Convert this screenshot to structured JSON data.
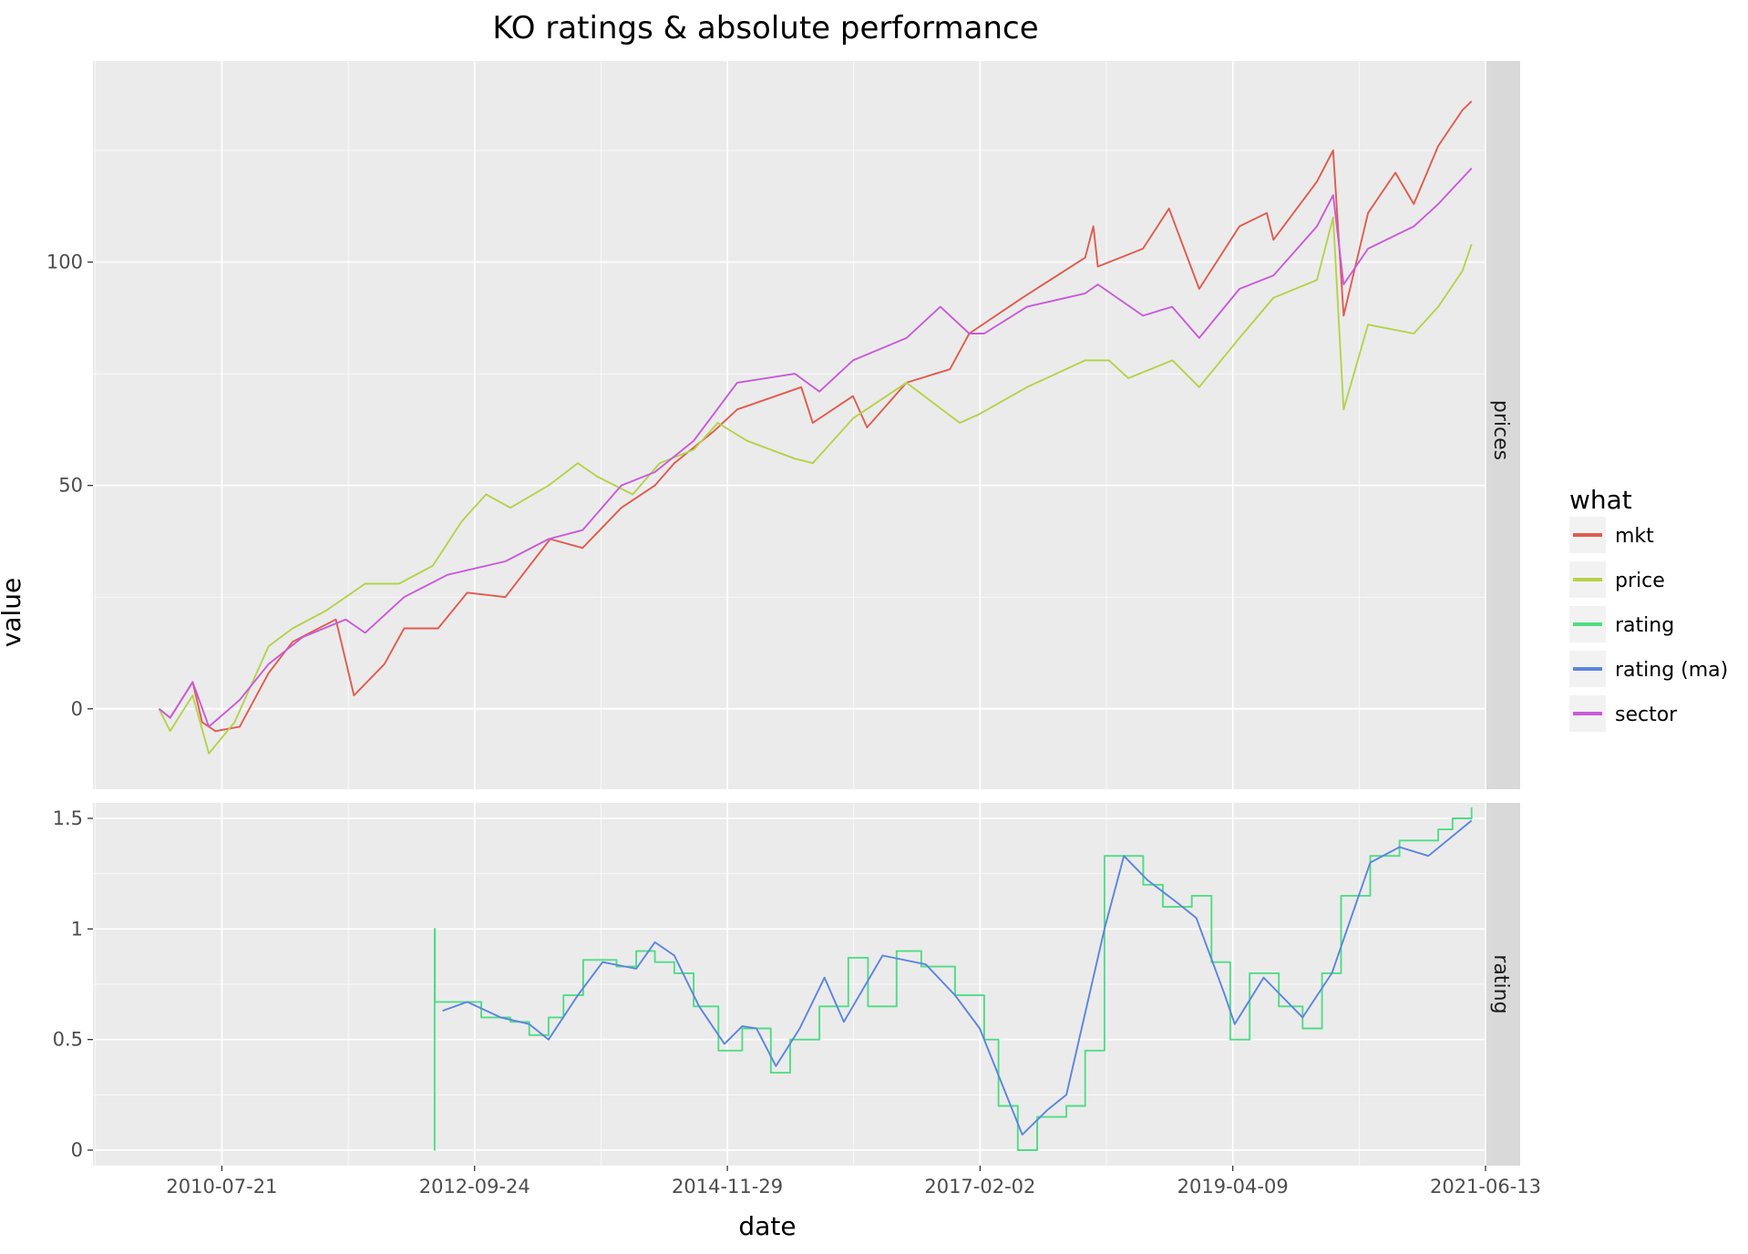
{
  "chart_data": {
    "type": "line",
    "title": "KO ratings & absolute performance",
    "xlabel": "date",
    "ylabel": "value",
    "x_type": "date",
    "x_ticks": [
      "2010-07-21",
      "2012-09-24",
      "2014-11-29",
      "2017-02-02",
      "2019-04-09",
      "2021-06-13"
    ],
    "xlim": [
      "2009-06-10",
      "2021-06-13"
    ],
    "grid": true,
    "legend": {
      "title": "what",
      "placement": "right",
      "entries": [
        "mkt",
        "price",
        "rating",
        "rating (ma)",
        "sector"
      ]
    },
    "colors": {
      "mkt": "#e15b4f",
      "price": "#b5d24b",
      "rating": "#4fdd85",
      "rating (ma)": "#5b84e0",
      "sector": "#c85bd9"
    },
    "facets": [
      {
        "label": "prices",
        "ylim": [
          -18,
          145
        ],
        "y_ticks": [
          "0",
          "50",
          "100"
        ],
        "series": [
          {
            "name": "mkt",
            "points": [
              [
                "2010-01-04",
                0
              ],
              [
                "2010-02-08",
                -2
              ],
              [
                "2010-04-20",
                6
              ],
              [
                "2010-05-20",
                -3
              ],
              [
                "2010-07-01",
                -5
              ],
              [
                "2010-09-15",
                -4
              ],
              [
                "2010-12-15",
                8
              ],
              [
                "2011-03-01",
                15
              ],
              [
                "2011-07-15",
                20
              ],
              [
                "2011-09-10",
                3
              ],
              [
                "2011-12-15",
                10
              ],
              [
                "2012-02-15",
                18
              ],
              [
                "2012-06-01",
                18
              ],
              [
                "2012-09-01",
                26
              ],
              [
                "2012-12-30",
                25
              ],
              [
                "2013-05-20",
                38
              ],
              [
                "2013-08-30",
                36
              ],
              [
                "2013-12-30",
                45
              ],
              [
                "2014-04-15",
                50
              ],
              [
                "2014-06-15",
                55
              ],
              [
                "2014-10-15",
                62
              ],
              [
                "2014-12-30",
                67
              ],
              [
                "2015-07-20",
                72
              ],
              [
                "2015-08-25",
                64
              ],
              [
                "2015-12-30",
                70
              ],
              [
                "2016-02-12",
                63
              ],
              [
                "2016-06-15",
                73
              ],
              [
                "2016-10-30",
                76
              ],
              [
                "2016-12-30",
                84
              ],
              [
                "2017-06-15",
                92
              ],
              [
                "2017-12-30",
                101
              ],
              [
                "2018-01-25",
                108
              ],
              [
                "2018-02-08",
                99
              ],
              [
                "2018-06-30",
                103
              ],
              [
                "2018-09-20",
                112
              ],
              [
                "2018-12-24",
                94
              ],
              [
                "2019-04-30",
                108
              ],
              [
                "2019-07-25",
                111
              ],
              [
                "2019-08-15",
                105
              ],
              [
                "2019-12-30",
                118
              ],
              [
                "2020-02-19",
                125
              ],
              [
                "2020-03-23",
                88
              ],
              [
                "2020-06-08",
                111
              ],
              [
                "2020-09-02",
                120
              ],
              [
                "2020-10-30",
                113
              ],
              [
                "2021-01-15",
                126
              ],
              [
                "2021-04-01",
                134
              ],
              [
                "2021-04-30",
                136
              ]
            ]
          },
          {
            "name": "price",
            "points": [
              [
                "2010-01-04",
                0
              ],
              [
                "2010-02-08",
                -5
              ],
              [
                "2010-04-20",
                3
              ],
              [
                "2010-06-10",
                -10
              ],
              [
                "2010-08-30",
                -3
              ],
              [
                "2010-12-15",
                14
              ],
              [
                "2011-03-01",
                18
              ],
              [
                "2011-06-15",
                22
              ],
              [
                "2011-10-15",
                28
              ],
              [
                "2012-01-30",
                28
              ],
              [
                "2012-05-15",
                32
              ],
              [
                "2012-08-15",
                42
              ],
              [
                "2012-10-30",
                48
              ],
              [
                "2013-01-15",
                45
              ],
              [
                "2013-05-15",
                50
              ],
              [
                "2013-08-15",
                55
              ],
              [
                "2013-10-15",
                52
              ],
              [
                "2014-02-04",
                48
              ],
              [
                "2014-04-30",
                55
              ],
              [
                "2014-08-15",
                58
              ],
              [
                "2014-10-30",
                64
              ],
              [
                "2015-01-30",
                60
              ],
              [
                "2015-06-30",
                56
              ],
              [
                "2015-08-25",
                55
              ],
              [
                "2015-12-30",
                65
              ],
              [
                "2016-06-15",
                73
              ],
              [
                "2016-11-30",
                64
              ],
              [
                "2017-02-01",
                66
              ],
              [
                "2017-06-30",
                72
              ],
              [
                "2017-12-30",
                78
              ],
              [
                "2018-03-15",
                78
              ],
              [
                "2018-05-15",
                74
              ],
              [
                "2018-10-01",
                78
              ],
              [
                "2018-12-24",
                72
              ],
              [
                "2019-04-30",
                83
              ],
              [
                "2019-08-15",
                92
              ],
              [
                "2019-12-30",
                96
              ],
              [
                "2020-02-19",
                110
              ],
              [
                "2020-03-23",
                67
              ],
              [
                "2020-06-08",
                86
              ],
              [
                "2020-10-30",
                84
              ],
              [
                "2021-01-15",
                90
              ],
              [
                "2021-04-01",
                98
              ],
              [
                "2021-04-30",
                104
              ]
            ]
          },
          {
            "name": "sector",
            "points": [
              [
                "2010-01-04",
                0
              ],
              [
                "2010-02-08",
                -2
              ],
              [
                "2010-04-20",
                6
              ],
              [
                "2010-06-10",
                -4
              ],
              [
                "2010-09-15",
                2
              ],
              [
                "2010-12-15",
                10
              ],
              [
                "2011-04-01",
                16
              ],
              [
                "2011-08-15",
                20
              ],
              [
                "2011-10-15",
                17
              ],
              [
                "2012-02-15",
                25
              ],
              [
                "2012-07-01",
                30
              ],
              [
                "2012-12-30",
                33
              ],
              [
                "2013-05-15",
                38
              ],
              [
                "2013-08-30",
                40
              ],
              [
                "2013-12-30",
                50
              ],
              [
                "2014-04-15",
                53
              ],
              [
                "2014-08-15",
                60
              ],
              [
                "2014-12-30",
                73
              ],
              [
                "2015-06-30",
                75
              ],
              [
                "2015-09-15",
                71
              ],
              [
                "2015-12-30",
                78
              ],
              [
                "2016-06-15",
                83
              ],
              [
                "2016-09-30",
                90
              ],
              [
                "2016-12-30",
                84
              ],
              [
                "2017-02-15",
                84
              ],
              [
                "2017-06-30",
                90
              ],
              [
                "2017-12-30",
                93
              ],
              [
                "2018-02-08",
                95
              ],
              [
                "2018-06-30",
                88
              ],
              [
                "2018-09-30",
                90
              ],
              [
                "2018-12-24",
                83
              ],
              [
                "2019-04-30",
                94
              ],
              [
                "2019-08-15",
                97
              ],
              [
                "2019-12-30",
                108
              ],
              [
                "2020-02-19",
                115
              ],
              [
                "2020-03-23",
                95
              ],
              [
                "2020-06-08",
                103
              ],
              [
                "2020-10-30",
                108
              ],
              [
                "2021-01-15",
                113
              ],
              [
                "2021-04-30",
                121
              ]
            ]
          }
        ]
      },
      {
        "label": "rating",
        "ylim": [
          -0.07,
          1.57
        ],
        "y_ticks": [
          "0",
          "0.5",
          "1",
          "1.5"
        ],
        "series": [
          {
            "name": "rating",
            "step": true,
            "points": [
              [
                "2012-05-20",
                0
              ],
              [
                "2012-05-21",
                1
              ],
              [
                "2012-05-22",
                0.67
              ],
              [
                "2012-09-20",
                0.67
              ],
              [
                "2012-10-15",
                0.6
              ],
              [
                "2013-01-15",
                0.58
              ],
              [
                "2013-03-15",
                0.52
              ],
              [
                "2013-05-15",
                0.6
              ],
              [
                "2013-07-01",
                0.7
              ],
              [
                "2013-09-01",
                0.86
              ],
              [
                "2013-12-15",
                0.83
              ],
              [
                "2014-02-15",
                0.9
              ],
              [
                "2014-04-15",
                0.85
              ],
              [
                "2014-06-15",
                0.8
              ],
              [
                "2014-08-15",
                0.65
              ],
              [
                "2014-11-01",
                0.45
              ],
              [
                "2015-01-15",
                0.55
              ],
              [
                "2015-04-15",
                0.35
              ],
              [
                "2015-06-15",
                0.5
              ],
              [
                "2015-09-15",
                0.65
              ],
              [
                "2015-12-15",
                0.87
              ],
              [
                "2016-02-15",
                0.65
              ],
              [
                "2016-05-15",
                0.9
              ],
              [
                "2016-08-01",
                0.83
              ],
              [
                "2016-11-15",
                0.7
              ],
              [
                "2017-02-15",
                0.5
              ],
              [
                "2017-04-01",
                0.2
              ],
              [
                "2017-06-01",
                0
              ],
              [
                "2017-08-01",
                0.15
              ],
              [
                "2017-11-01",
                0.2
              ],
              [
                "2017-12-30",
                0.45
              ],
              [
                "2018-03-01",
                1.33
              ],
              [
                "2018-07-01",
                1.2
              ],
              [
                "2018-09-01",
                1.1
              ],
              [
                "2018-12-01",
                1.15
              ],
              [
                "2019-02-01",
                0.85
              ],
              [
                "2019-04-01",
                0.5
              ],
              [
                "2019-06-01",
                0.8
              ],
              [
                "2019-09-01",
                0.65
              ],
              [
                "2019-11-15",
                0.55
              ],
              [
                "2020-01-15",
                0.8
              ],
              [
                "2020-03-15",
                1.15
              ],
              [
                "2020-06-15",
                1.33
              ],
              [
                "2020-09-15",
                1.4
              ],
              [
                "2021-01-15",
                1.45
              ],
              [
                "2021-03-01",
                1.5
              ],
              [
                "2021-04-30",
                1.55
              ]
            ]
          },
          {
            "name": "rating (ma)",
            "points": [
              [
                "2012-06-15",
                0.63
              ],
              [
                "2012-09-01",
                0.67
              ],
              [
                "2012-12-15",
                0.6
              ],
              [
                "2013-03-15",
                0.57
              ],
              [
                "2013-05-15",
                0.5
              ],
              [
                "2013-08-15",
                0.7
              ],
              [
                "2013-11-01",
                0.85
              ],
              [
                "2014-02-15",
                0.82
              ],
              [
                "2014-04-15",
                0.94
              ],
              [
                "2014-06-15",
                0.88
              ],
              [
                "2014-09-01",
                0.65
              ],
              [
                "2014-11-20",
                0.48
              ],
              [
                "2015-01-15",
                0.56
              ],
              [
                "2015-03-01",
                0.55
              ],
              [
                "2015-05-01",
                0.38
              ],
              [
                "2015-07-15",
                0.55
              ],
              [
                "2015-10-01",
                0.78
              ],
              [
                "2015-12-01",
                0.58
              ],
              [
                "2016-04-01",
                0.88
              ],
              [
                "2016-08-15",
                0.84
              ],
              [
                "2016-11-15",
                0.7
              ],
              [
                "2017-02-01",
                0.55
              ],
              [
                "2017-06-15",
                0.07
              ],
              [
                "2017-09-01",
                0.18
              ],
              [
                "2017-11-01",
                0.25
              ],
              [
                "2018-03-01",
                1.0
              ],
              [
                "2018-05-01",
                1.33
              ],
              [
                "2018-07-15",
                1.22
              ],
              [
                "2018-10-15",
                1.12
              ],
              [
                "2018-12-15",
                1.05
              ],
              [
                "2019-03-15",
                0.7
              ],
              [
                "2019-04-15",
                0.57
              ],
              [
                "2019-07-15",
                0.78
              ],
              [
                "2019-11-15",
                0.6
              ],
              [
                "2020-02-15",
                0.8
              ],
              [
                "2020-06-15",
                1.3
              ],
              [
                "2020-09-15",
                1.37
              ],
              [
                "2020-12-15",
                1.33
              ],
              [
                "2021-04-30",
                1.49
              ]
            ]
          }
        ]
      }
    ]
  }
}
